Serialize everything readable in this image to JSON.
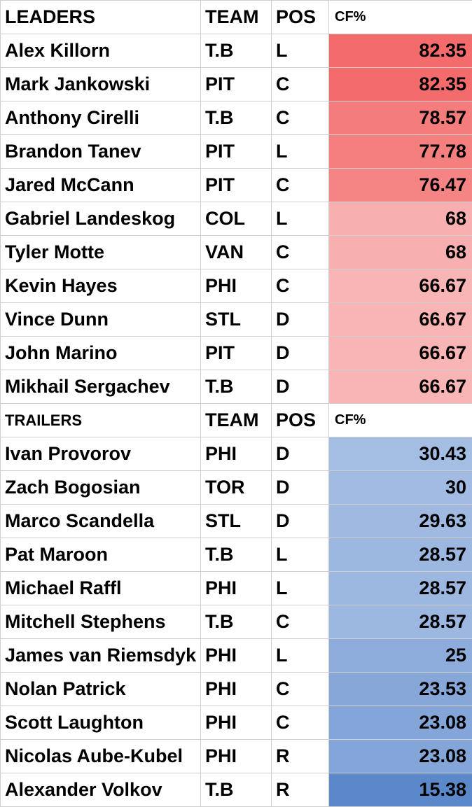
{
  "leaders": {
    "header": {
      "name": "LEADERS",
      "team": "TEAM",
      "pos": "POS",
      "cf": "CF%"
    },
    "rows": [
      {
        "name": "Alex Killorn",
        "team": "T.B",
        "pos": "L",
        "cf": "82.35",
        "color": "#f46b6b"
      },
      {
        "name": "Mark Jankowski",
        "team": "PIT",
        "pos": "C",
        "cf": "82.35",
        "color": "#f46b6b"
      },
      {
        "name": "Anthony Cirelli",
        "team": "T.B",
        "pos": "C",
        "cf": "78.57",
        "color": "#f47c7c"
      },
      {
        "name": "Brandon Tanev",
        "team": "PIT",
        "pos": "L",
        "cf": "77.78",
        "color": "#f47f7f"
      },
      {
        "name": "Jared McCann",
        "team": "PIT",
        "pos": "C",
        "cf": "76.47",
        "color": "#f58585"
      },
      {
        "name": "Gabriel Landeskog",
        "team": "COL",
        "pos": "L",
        "cf": "68",
        "color": "#f8afb0"
      },
      {
        "name": "Tyler Motte",
        "team": "VAN",
        "pos": "C",
        "cf": "68",
        "color": "#f8afb0"
      },
      {
        "name": "Kevin Hayes",
        "team": "PHI",
        "pos": "C",
        "cf": "66.67",
        "color": "#f9b5b6"
      },
      {
        "name": "Vince Dunn",
        "team": "STL",
        "pos": "D",
        "cf": "66.67",
        "color": "#f9b5b6"
      },
      {
        "name": "John Marino",
        "team": "PIT",
        "pos": "D",
        "cf": "66.67",
        "color": "#f9b5b6"
      },
      {
        "name": "Mikhail Sergachev",
        "team": "T.B",
        "pos": "D",
        "cf": "66.67",
        "color": "#f9b5b6"
      }
    ]
  },
  "trailers": {
    "header": {
      "name": "TRAILERS",
      "team": "TEAM",
      "pos": "POS",
      "cf": "CF%"
    },
    "rows": [
      {
        "name": "Ivan Provorov",
        "team": "PHI",
        "pos": "D",
        "cf": "30.43",
        "color": "#a4bde3"
      },
      {
        "name": "Zach Bogosian",
        "team": "TOR",
        "pos": "D",
        "cf": "30",
        "color": "#a2bbe2"
      },
      {
        "name": "Marco Scandella",
        "team": "STL",
        "pos": "D",
        "cf": "29.63",
        "color": "#9fb9e1"
      },
      {
        "name": "Pat Maroon",
        "team": "T.B",
        "pos": "L",
        "cf": "28.57",
        "color": "#9cb7e0"
      },
      {
        "name": "Michael Raffl",
        "team": "PHI",
        "pos": "L",
        "cf": "28.57",
        "color": "#9cb7e0"
      },
      {
        "name": "Mitchell Stephens",
        "team": "T.B",
        "pos": "C",
        "cf": "28.57",
        "color": "#9cb7e0"
      },
      {
        "name": "James van Riemsdyk",
        "team": "PHI",
        "pos": "L",
        "cf": "25",
        "color": "#8eacdb"
      },
      {
        "name": "Nolan Patrick",
        "team": "PHI",
        "pos": "C",
        "cf": "23.53",
        "color": "#86a7d8"
      },
      {
        "name": "Scott Laughton",
        "team": "PHI",
        "pos": "C",
        "cf": "23.08",
        "color": "#84a5d7"
      },
      {
        "name": "Nicolas Aube-Kubel",
        "team": "PHI",
        "pos": "R",
        "cf": "23.08",
        "color": "#84a5d7"
      },
      {
        "name": "Alexander Volkov",
        "team": "T.B",
        "pos": "R",
        "cf": "15.38",
        "color": "#5b88c9"
      }
    ]
  }
}
